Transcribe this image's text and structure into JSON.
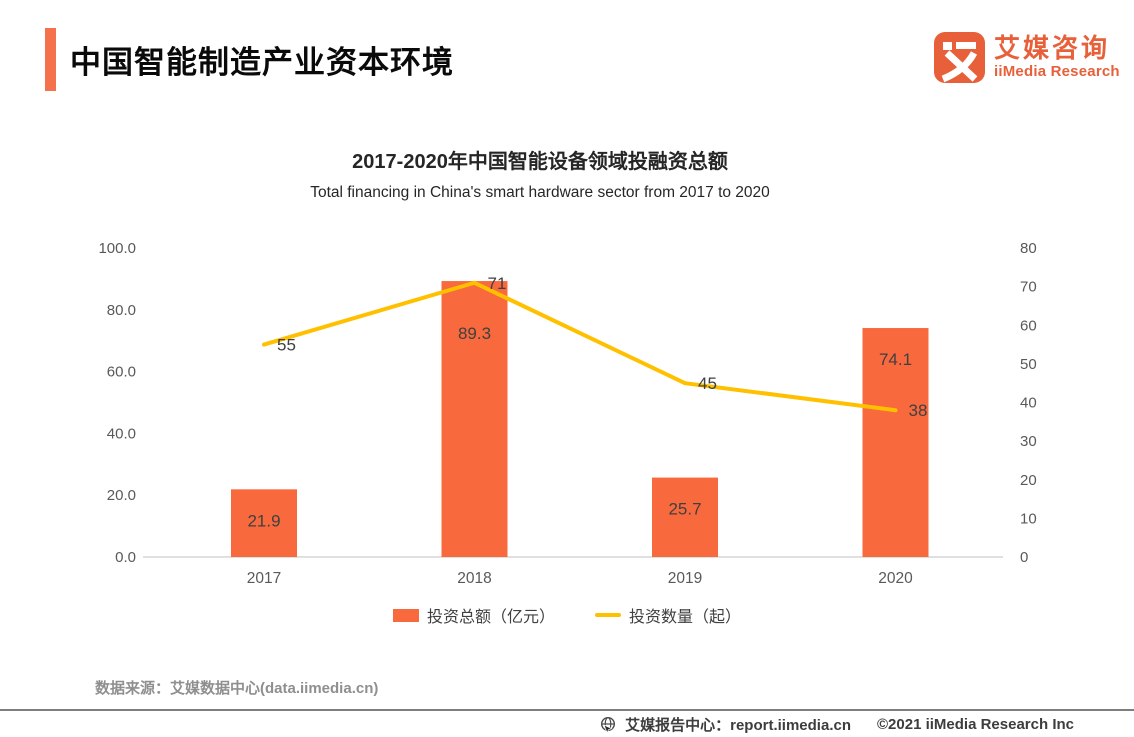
{
  "header": {
    "title": "中国智能制造产业资本环境",
    "accent_color": "#F4714B"
  },
  "logo": {
    "name_cn": "艾媒咨询",
    "name_en": "iiMedia Research",
    "color": "#E8603A"
  },
  "chart_data": {
    "type": "bar",
    "combo": "bar+line",
    "title": "2017-2020年中国智能设备领域投融资总额",
    "subtitle": "Total financing in China's smart hardware sector from 2017 to 2020",
    "categories": [
      "2017",
      "2018",
      "2019",
      "2020"
    ],
    "series": [
      {
        "name": "投资总额（亿元）",
        "type": "bar",
        "axis": "left",
        "color": "#F8693D",
        "values": [
          21.9,
          89.3,
          25.7,
          74.1
        ]
      },
      {
        "name": "投资数量（起）",
        "type": "line",
        "axis": "right",
        "color": "#FFC000",
        "values": [
          55,
          71,
          45,
          38
        ]
      }
    ],
    "left_axis": {
      "min": 0,
      "max": 100,
      "ticks": [
        "100.0",
        "80.0",
        "60.0",
        "40.0",
        "20.0",
        "0.0"
      ]
    },
    "right_axis": {
      "min": 0,
      "max": 80,
      "ticks": [
        "80",
        "70",
        "60",
        "50",
        "40",
        "30",
        "20",
        "10",
        "0"
      ]
    },
    "grid": false,
    "legend_position": "bottom"
  },
  "source": {
    "text": "数据来源：艾媒数据中心(data.iimedia.cn)"
  },
  "footer": {
    "report_center": "艾媒报告中心：report.iimedia.cn",
    "copyright": "©2021  iiMedia Research Inc"
  }
}
